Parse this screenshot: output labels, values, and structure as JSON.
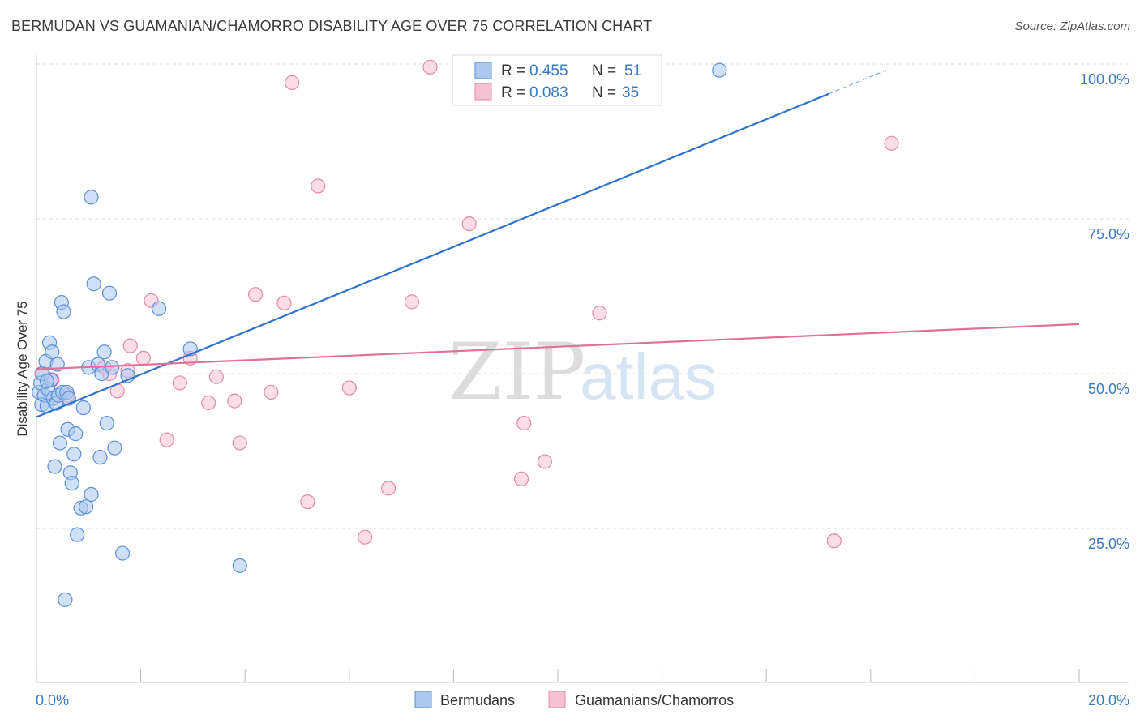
{
  "title": "BERMUDAN VS GUAMANIAN/CHAMORRO DISABILITY AGE OVER 75 CORRELATION CHART",
  "source": "Source: ZipAtlas.com",
  "watermark": {
    "zip": "ZIP",
    "atlas": "atlas"
  },
  "colors": {
    "blue_fill": "#aac8f0",
    "blue_stroke": "#5b8fd6",
    "blue_line": "#2f73cc",
    "pink_fill": "#f6c1d3",
    "pink_stroke": "#e48aa8",
    "pink_line": "#e0709a",
    "axis_text": "#3b78c4",
    "grid": "#dddddd"
  },
  "legend": {
    "rows": [
      {
        "r_label": "R = ",
        "r_value": "0.455",
        "n_label": "N = ",
        "n_value": "51",
        "series": "blue"
      },
      {
        "r_label": "R = ",
        "r_value": "0.083",
        "n_label": "N = ",
        "n_value": "35",
        "series": "pink"
      }
    ]
  },
  "bottom_legend": [
    "Bermudans",
    "Guamanians/Chamorros"
  ],
  "chart_data": {
    "type": "scatter",
    "title": "BERMUDAN VS GUAMANIAN/CHAMORRO DISABILITY AGE OVER 75 CORRELATION CHART",
    "xlabel": "",
    "ylabel": "Disability Age Over 75",
    "xlim": [
      0,
      20
    ],
    "ylim": [
      2,
      104
    ],
    "x_tick_labels": [
      {
        "value": 0,
        "label": "0.0%"
      },
      {
        "value": 20,
        "label": "20.0%"
      }
    ],
    "y_tick_labels": [
      {
        "value": 25,
        "label": "25.0%"
      },
      {
        "value": 50,
        "label": "50.0%"
      },
      {
        "value": 75,
        "label": "75.0%"
      },
      {
        "value": 100,
        "label": "100.0%"
      }
    ],
    "series": [
      {
        "name": "Bermudans",
        "color": "blue",
        "trend": {
          "x0": 0,
          "y0": 43.0,
          "x1": 15.2,
          "y1": 95.2,
          "dash_to_x": 16.3,
          "dash_to_y": 99.0
        },
        "points": [
          [
            0.05,
            47.0
          ],
          [
            0.08,
            48.5
          ],
          [
            0.1,
            45.0
          ],
          [
            0.12,
            50.0
          ],
          [
            0.15,
            46.5
          ],
          [
            0.18,
            52.0
          ],
          [
            0.2,
            44.8
          ],
          [
            0.22,
            47.5
          ],
          [
            0.25,
            55.0
          ],
          [
            0.28,
            49.0
          ],
          [
            0.3,
            53.5
          ],
          [
            0.32,
            46.0
          ],
          [
            0.35,
            35.0
          ],
          [
            0.38,
            45.2
          ],
          [
            0.4,
            51.5
          ],
          [
            0.42,
            46.5
          ],
          [
            0.45,
            38.8
          ],
          [
            0.48,
            61.5
          ],
          [
            0.5,
            47.0
          ],
          [
            0.52,
            60.0
          ],
          [
            0.55,
            13.5
          ],
          [
            0.58,
            47.0
          ],
          [
            0.6,
            41.0
          ],
          [
            0.62,
            46.0
          ],
          [
            0.65,
            34.0
          ],
          [
            0.68,
            32.3
          ],
          [
            0.72,
            37.0
          ],
          [
            0.75,
            40.3
          ],
          [
            0.78,
            24.0
          ],
          [
            0.85,
            28.3
          ],
          [
            0.9,
            44.5
          ],
          [
            0.95,
            28.5
          ],
          [
            1.0,
            51.0
          ],
          [
            1.05,
            78.5
          ],
          [
            1.05,
            30.5
          ],
          [
            1.1,
            64.5
          ],
          [
            1.18,
            51.5
          ],
          [
            1.22,
            36.5
          ],
          [
            1.25,
            50.0
          ],
          [
            1.3,
            53.5
          ],
          [
            1.35,
            42.0
          ],
          [
            1.4,
            63.0
          ],
          [
            1.45,
            51.0
          ],
          [
            1.5,
            38.0
          ],
          [
            1.65,
            21.0
          ],
          [
            1.75,
            49.7
          ],
          [
            2.35,
            60.5
          ],
          [
            2.95,
            54.0
          ],
          [
            3.9,
            19.0
          ],
          [
            13.1,
            99.0
          ],
          [
            0.2,
            48.8
          ]
        ]
      },
      {
        "name": "Guamanians/Chamorros",
        "color": "pink",
        "trend": {
          "x0": 0,
          "y0": 50.7,
          "x1": 20,
          "y1": 58.0
        },
        "points": [
          [
            0.1,
            50.0
          ],
          [
            0.3,
            49.0
          ],
          [
            0.6,
            46.5
          ],
          [
            1.4,
            50.0
          ],
          [
            1.3,
            51.0
          ],
          [
            1.55,
            47.2
          ],
          [
            1.75,
            50.5
          ],
          [
            1.8,
            54.5
          ],
          [
            2.05,
            52.5
          ],
          [
            2.2,
            61.8
          ],
          [
            2.5,
            39.3
          ],
          [
            2.75,
            48.5
          ],
          [
            2.95,
            52.5
          ],
          [
            3.3,
            45.3
          ],
          [
            3.45,
            49.5
          ],
          [
            3.8,
            45.6
          ],
          [
            3.9,
            38.8
          ],
          [
            4.2,
            62.8
          ],
          [
            4.5,
            47.0
          ],
          [
            4.75,
            61.4
          ],
          [
            4.9,
            97.0
          ],
          [
            5.2,
            29.3
          ],
          [
            5.4,
            80.3
          ],
          [
            6.0,
            47.7
          ],
          [
            6.3,
            23.6
          ],
          [
            6.75,
            31.5
          ],
          [
            7.2,
            61.6
          ],
          [
            7.55,
            99.5
          ],
          [
            8.3,
            74.2
          ],
          [
            9.3,
            33.0
          ],
          [
            9.35,
            42.0
          ],
          [
            9.75,
            35.8
          ],
          [
            10.8,
            59.8
          ],
          [
            15.3,
            23.0
          ],
          [
            16.4,
            87.2
          ]
        ]
      }
    ]
  }
}
